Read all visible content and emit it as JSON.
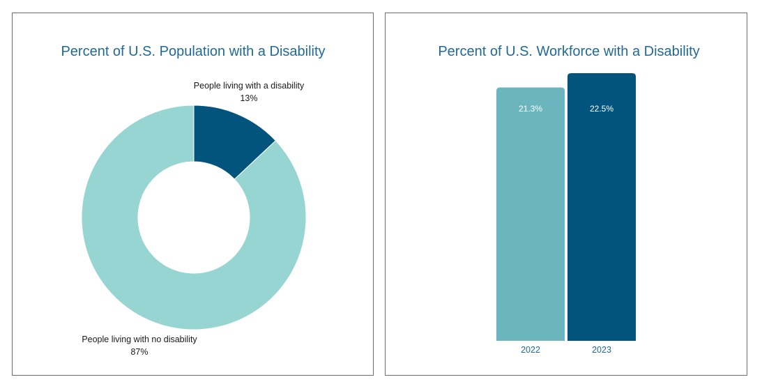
{
  "chart_data": [
    {
      "type": "pie",
      "title": "Percent of U.S. Population with a Disability",
      "categories": [
        "People living with a disability",
        "People living with no disability"
      ],
      "values": [
        13,
        87
      ],
      "value_labels": [
        "13%",
        "87%"
      ],
      "colors": [
        "#02547d",
        "#97d5d2"
      ]
    },
    {
      "type": "bar",
      "title": "Percent of U.S. Workforce with a Disability",
      "categories": [
        "2022",
        "2023"
      ],
      "values": [
        21.3,
        22.5
      ],
      "value_labels": [
        "21.3%",
        "22.5%"
      ],
      "colors": [
        "#6bb6be",
        "#02547d"
      ],
      "ylim": [
        0,
        22.5
      ],
      "xlabel": "",
      "ylabel": ""
    }
  ]
}
